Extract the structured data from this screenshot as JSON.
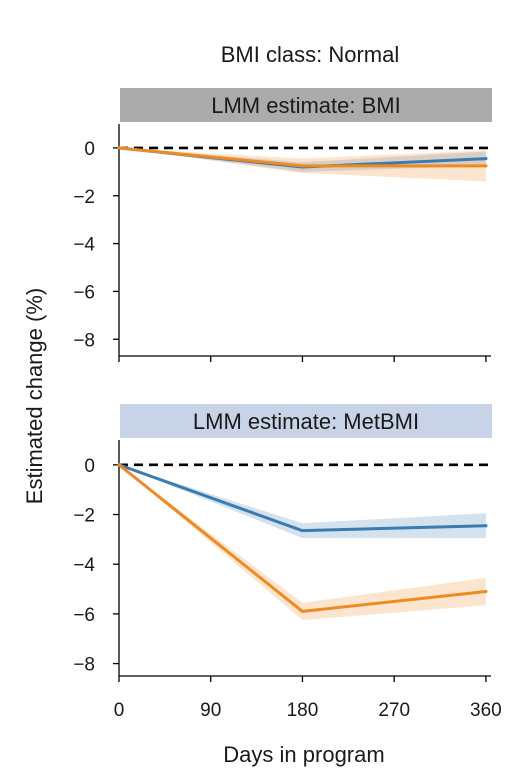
{
  "figure": {
    "title": "BMI class: Normal",
    "ylabel": "Estimated change (%)",
    "xlabel": "Days in program"
  },
  "colors": {
    "blue": "#3a7bb0",
    "orange": "#ef8a23",
    "header_gray": "#ababab",
    "header_blue": "#c9d3e8",
    "zero_line": "#000000"
  },
  "chart_data": [
    {
      "type": "line",
      "title": "LMM estimate: BMI",
      "header_color": "#ababab",
      "x": [
        0,
        180,
        360
      ],
      "xlim": [
        0,
        365
      ],
      "ylim": [
        -8.7,
        1.0
      ],
      "yticks": [
        0,
        -2,
        -4,
        -6,
        -8
      ],
      "ytick_labels": [
        "0",
        "−2",
        "−4",
        "−6",
        "−8"
      ],
      "xticks": [
        0,
        90,
        180,
        270,
        360
      ],
      "reference_line": 0,
      "series": [
        {
          "color": "#3a7bb0",
          "values": [
            0,
            -0.8,
            -0.45
          ],
          "lower": [
            0,
            -1.0,
            -0.75
          ],
          "upper": [
            0,
            -0.6,
            -0.15
          ]
        },
        {
          "color": "#ef8a23",
          "values": [
            0,
            -0.75,
            -0.75
          ],
          "lower": [
            0,
            -1.05,
            -1.4
          ],
          "upper": [
            0,
            -0.45,
            -0.1
          ]
        }
      ]
    },
    {
      "type": "line",
      "title": "LMM estimate: MetBMI",
      "header_color": "#c9d3e8",
      "x": [
        0,
        180,
        360
      ],
      "xlim": [
        0,
        365
      ],
      "ylim": [
        -8.5,
        1.0
      ],
      "yticks": [
        0,
        -2,
        -4,
        -6,
        -8
      ],
      "ytick_labels": [
        "0",
        "−2",
        "−4",
        "−6",
        "−8"
      ],
      "xticks": [
        0,
        90,
        180,
        270,
        360
      ],
      "xtick_labels": [
        "0",
        "90",
        "180",
        "270",
        "360"
      ],
      "reference_line": 0,
      "series": [
        {
          "color": "#3a7bb0",
          "values": [
            0,
            -2.65,
            -2.45
          ],
          "lower": [
            0,
            -2.95,
            -2.95
          ],
          "upper": [
            0,
            -2.35,
            -1.95
          ]
        },
        {
          "color": "#ef8a23",
          "values": [
            0,
            -5.9,
            -5.1
          ],
          "lower": [
            0,
            -6.25,
            -5.65
          ],
          "upper": [
            0,
            -5.55,
            -4.55
          ]
        }
      ]
    }
  ]
}
